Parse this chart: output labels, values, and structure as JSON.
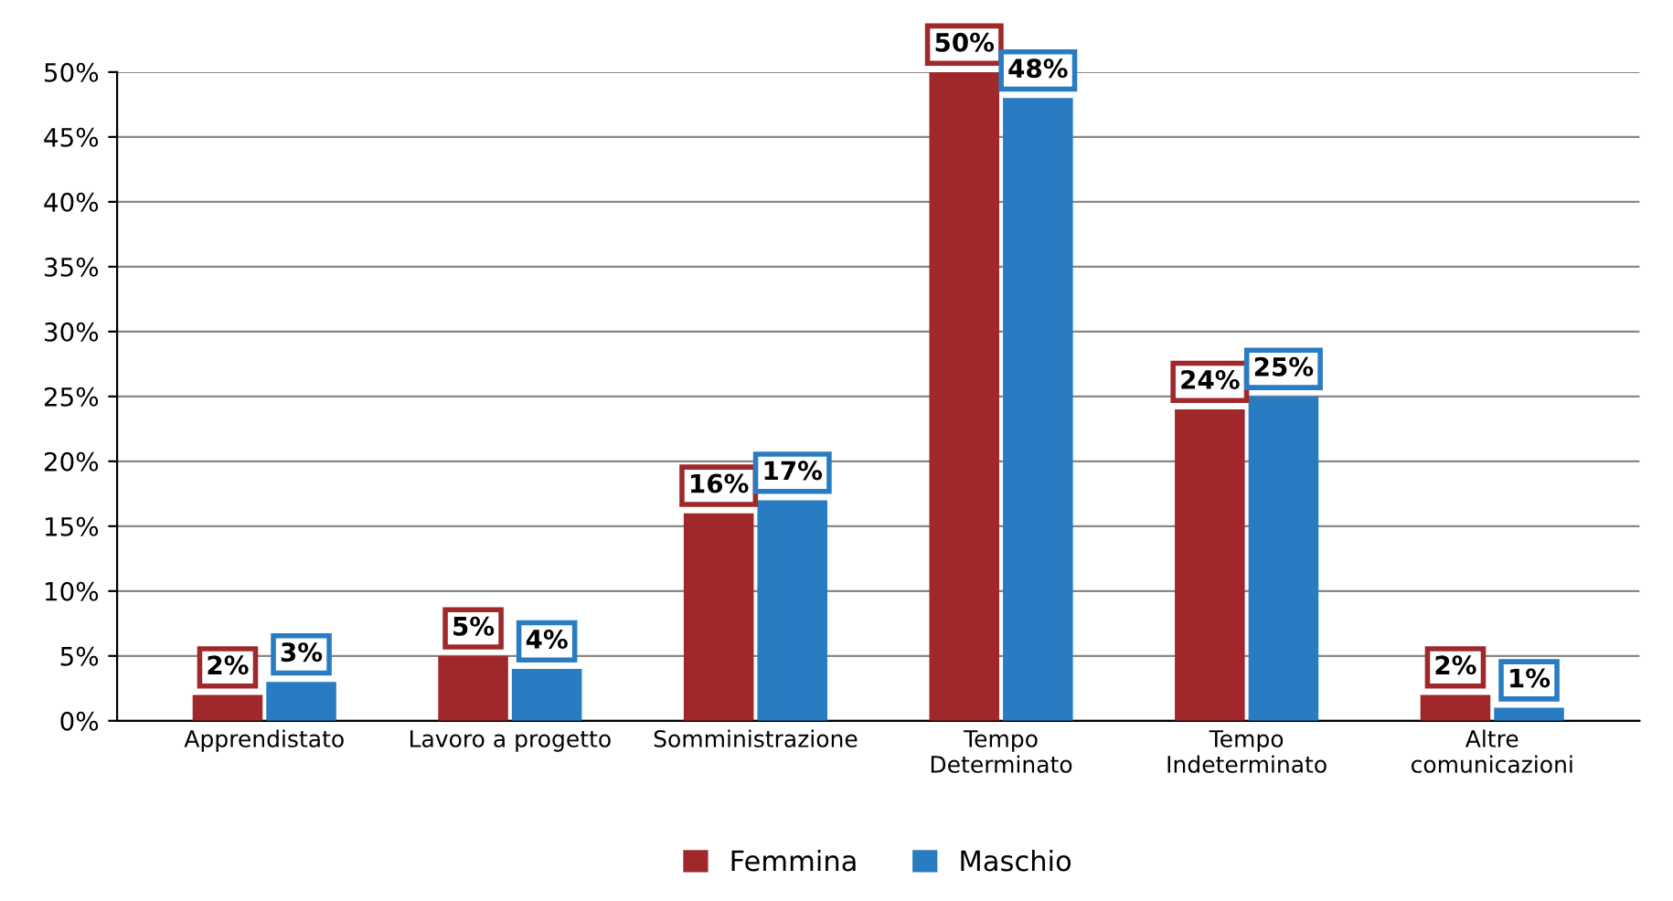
{
  "chart_data": {
    "type": "bar",
    "categories": [
      "Apprendistato",
      "Lavoro a progetto",
      "Somministrazione",
      "Tempo\nDeterminato",
      "Tempo\nIndeterminato",
      "Altre\ncomunicazioni"
    ],
    "series": [
      {
        "name": "Femmina",
        "color": "#a0282b",
        "values": [
          2,
          5,
          16,
          50,
          24,
          2
        ],
        "value_labels": [
          "2%",
          "5%",
          "16%",
          "50%",
          "24%",
          "2%"
        ]
      },
      {
        "name": "Maschio",
        "color": "#2a7cc2",
        "values": [
          3,
          4,
          17,
          48,
          25,
          1
        ],
        "value_labels": [
          "3%",
          "4%",
          "17%",
          "48%",
          "25%",
          "1%"
        ]
      }
    ],
    "ylim": [
      0,
      50
    ],
    "yticks": [
      {
        "value": 0,
        "label": "0%"
      },
      {
        "value": 5,
        "label": "5%"
      },
      {
        "value": 10,
        "label": "10%"
      },
      {
        "value": 15,
        "label": "15%"
      },
      {
        "value": 20,
        "label": "20%"
      },
      {
        "value": 25,
        "label": "25%"
      },
      {
        "value": 30,
        "label": "30%"
      },
      {
        "value": 35,
        "label": "35%"
      },
      {
        "value": 40,
        "label": "40%"
      },
      {
        "value": 45,
        "label": "45%"
      },
      {
        "value": 50,
        "label": "50%"
      }
    ],
    "grid": "y",
    "legend": "bottom"
  }
}
